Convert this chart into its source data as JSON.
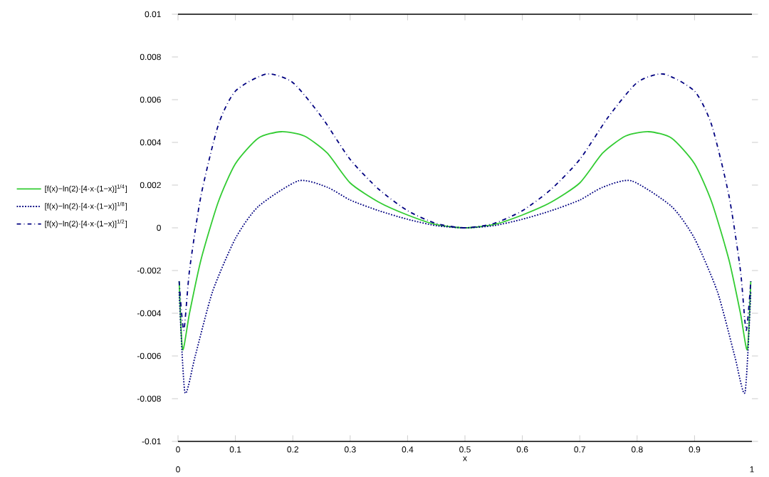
{
  "chart_data": {
    "type": "line",
    "xlabel": "x",
    "xlim": [
      0,
      1
    ],
    "ylim": [
      -0.01,
      0.01
    ],
    "xticks": [
      0,
      0.1,
      0.2,
      0.3,
      0.4,
      0.5,
      0.6,
      0.7,
      0.8,
      0.9
    ],
    "yticks": [
      -0.01,
      -0.008,
      -0.006,
      -0.004,
      -0.002,
      0,
      0.002,
      0.004,
      0.006,
      0.008,
      0.01
    ],
    "annotations": [
      "0",
      "1"
    ],
    "legend": "left",
    "grid": false,
    "series": [
      {
        "name": "[f(x)−ln(2)·[4·x·(1−x)]$^{1/4}$]",
        "color": "#33cc33",
        "line_style": "solid",
        "x": [
          0.002,
          0.008,
          0.02,
          0.04,
          0.07,
          0.1,
          0.14,
          0.18,
          0.22,
          0.26,
          0.3,
          0.35,
          0.4,
          0.45,
          0.5,
          0.55,
          0.6,
          0.65,
          0.7,
          0.74,
          0.78,
          0.82,
          0.86,
          0.9,
          0.93,
          0.96,
          0.98,
          0.992,
          0.998
        ],
        "values": [
          -0.0025,
          -0.0057,
          -0.004,
          -0.0015,
          0.0012,
          0.003,
          0.0042,
          0.0045,
          0.0043,
          0.0035,
          0.0021,
          0.0012,
          0.0006,
          0.00015,
          0,
          0.00015,
          0.0006,
          0.0012,
          0.0021,
          0.0035,
          0.0043,
          0.0045,
          0.0042,
          0.003,
          0.0012,
          -0.0015,
          -0.004,
          -0.0057,
          -0.0025
        ]
      },
      {
        "name": "[f(x)−ln(2)·[4·x·(1−x)]$^{1/8}$]",
        "color": "#000080",
        "line_style": "dotted",
        "x": [
          0.002,
          0.012,
          0.03,
          0.06,
          0.1,
          0.14,
          0.21,
          0.26,
          0.3,
          0.35,
          0.4,
          0.45,
          0.5,
          0.55,
          0.6,
          0.65,
          0.7,
          0.74,
          0.79,
          0.86,
          0.9,
          0.94,
          0.97,
          0.988,
          0.998
        ],
        "values": [
          -0.003,
          -0.0077,
          -0.006,
          -0.003,
          -0.0005,
          0.001,
          0.0022,
          0.0019,
          0.0013,
          0.0008,
          0.0004,
          0.0001,
          0,
          0.0001,
          0.0004,
          0.0008,
          0.0013,
          0.0019,
          0.0022,
          0.001,
          -0.0005,
          -0.003,
          -0.006,
          -0.0077,
          -0.003
        ]
      },
      {
        "name": "[f(x)−ln(2)·[4·x·(1−x)]$^{1/2}$]",
        "color": "#000080",
        "line_style": "dashed",
        "x": [
          0.002,
          0.01,
          0.02,
          0.04,
          0.07,
          0.1,
          0.154,
          0.2,
          0.25,
          0.3,
          0.35,
          0.4,
          0.45,
          0.5,
          0.55,
          0.6,
          0.65,
          0.7,
          0.75,
          0.8,
          0.846,
          0.9,
          0.93,
          0.96,
          0.98,
          0.99,
          0.998
        ],
        "values": [
          -0.0025,
          -0.0048,
          -0.002,
          0.0015,
          0.0048,
          0.0064,
          0.0072,
          0.0068,
          0.0052,
          0.0032,
          0.0018,
          0.0008,
          0.0002,
          0,
          0.0002,
          0.0008,
          0.0018,
          0.0032,
          0.0052,
          0.0068,
          0.0072,
          0.0064,
          0.0048,
          0.0015,
          -0.002,
          -0.0048,
          -0.0025
        ]
      }
    ]
  }
}
